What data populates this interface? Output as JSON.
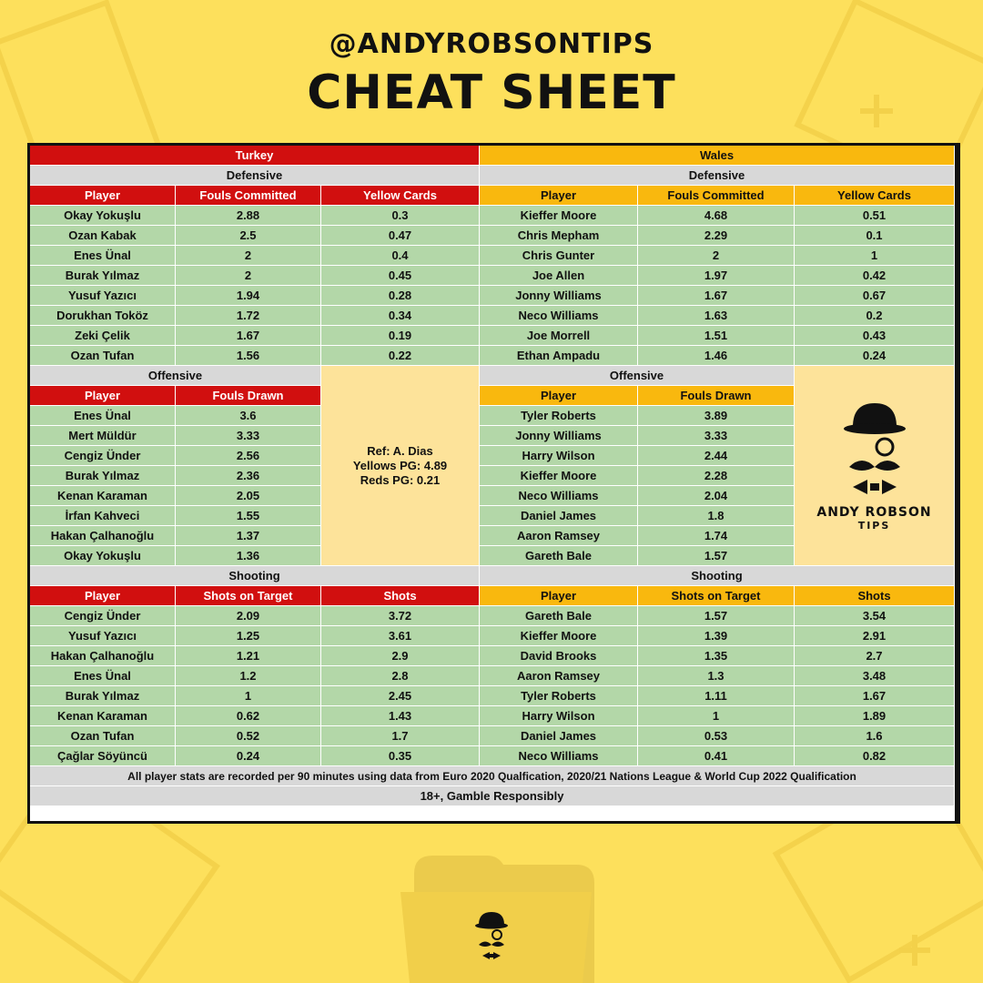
{
  "header": {
    "handle": "@ANDYROBSONTIPS",
    "title": "CHEAT SHEET"
  },
  "colors": {
    "background": "#fde05c",
    "turkey": "#d10f0f",
    "wales": "#f9b80e",
    "data_cell": "#b3d7a8",
    "section_header": "#d8d8d8",
    "panel": "#fde39a"
  },
  "teams": {
    "left": "Turkey",
    "right": "Wales"
  },
  "defensive": {
    "label": "Defensive",
    "headers": [
      "Player",
      "Fouls Committed",
      "Yellow Cards"
    ],
    "left_rows": [
      [
        "Okay Yokuşlu",
        "2.88",
        "0.3"
      ],
      [
        "Ozan Kabak",
        "2.5",
        "0.47"
      ],
      [
        "Enes Ünal",
        "2",
        "0.4"
      ],
      [
        "Burak Yılmaz",
        "2",
        "0.45"
      ],
      [
        "Yusuf Yazıcı",
        "1.94",
        "0.28"
      ],
      [
        "Dorukhan Toköz",
        "1.72",
        "0.34"
      ],
      [
        "Zeki Çelik",
        "1.67",
        "0.19"
      ],
      [
        "Ozan Tufan",
        "1.56",
        "0.22"
      ]
    ],
    "right_rows": [
      [
        "Kieffer Moore",
        "4.68",
        "0.51"
      ],
      [
        "Chris Mepham",
        "2.29",
        "0.1"
      ],
      [
        "Chris Gunter",
        "2",
        "1"
      ],
      [
        "Joe Allen",
        "1.97",
        "0.42"
      ],
      [
        "Jonny Williams",
        "1.67",
        "0.67"
      ],
      [
        "Neco Williams",
        "1.63",
        "0.2"
      ],
      [
        "Joe Morrell",
        "1.51",
        "0.43"
      ],
      [
        "Ethan Ampadu",
        "1.46",
        "0.24"
      ]
    ]
  },
  "offensive": {
    "label": "Offensive",
    "headers": [
      "Player",
      "Fouls Drawn"
    ],
    "left_rows": [
      [
        "Enes Ünal",
        "3.6"
      ],
      [
        "Mert Müldür",
        "3.33"
      ],
      [
        "Cengiz Ünder",
        "2.56"
      ],
      [
        "Burak Yılmaz",
        "2.36"
      ],
      [
        "Kenan Karaman",
        "2.05"
      ],
      [
        "İrfan Kahveci",
        "1.55"
      ],
      [
        "Hakan Çalhanoğlu",
        "1.37"
      ],
      [
        "Okay Yokuşlu",
        "1.36"
      ]
    ],
    "right_rows": [
      [
        "Tyler Roberts",
        "3.89"
      ],
      [
        "Jonny Williams",
        "3.33"
      ],
      [
        "Harry Wilson",
        "2.44"
      ],
      [
        "Kieffer Moore",
        "2.28"
      ],
      [
        "Neco Williams",
        "2.04"
      ],
      [
        "Daniel James",
        "1.8"
      ],
      [
        "Aaron Ramsey",
        "1.74"
      ],
      [
        "Gareth Bale",
        "1.57"
      ]
    ]
  },
  "referee": {
    "ref": "Ref: A. Dias",
    "yellows": "Yellows PG: 4.89",
    "reds": "Reds PG: 0.21"
  },
  "logo": {
    "name": "ANDY ROBSON",
    "sub": "TIPS"
  },
  "shooting": {
    "label": "Shooting",
    "headers": [
      "Player",
      "Shots on Target",
      "Shots"
    ],
    "left_rows": [
      [
        "Cengiz Ünder",
        "2.09",
        "3.72"
      ],
      [
        "Yusuf Yazıcı",
        "1.25",
        "3.61"
      ],
      [
        "Hakan Çalhanoğlu",
        "1.21",
        "2.9"
      ],
      [
        "Enes Ünal",
        "1.2",
        "2.8"
      ],
      [
        "Burak Yılmaz",
        "1",
        "2.45"
      ],
      [
        "Kenan Karaman",
        "0.62",
        "1.43"
      ],
      [
        "Ozan Tufan",
        "0.52",
        "1.7"
      ],
      [
        "Çağlar Söyüncü",
        "0.24",
        "0.35"
      ]
    ],
    "right_rows": [
      [
        "Gareth Bale",
        "1.57",
        "3.54"
      ],
      [
        "Kieffer Moore",
        "1.39",
        "2.91"
      ],
      [
        "David Brooks",
        "1.35",
        "2.7"
      ],
      [
        "Aaron Ramsey",
        "1.3",
        "3.48"
      ],
      [
        "Tyler Roberts",
        "1.11",
        "1.67"
      ],
      [
        "Harry Wilson",
        "1",
        "1.89"
      ],
      [
        "Daniel James",
        "0.53",
        "1.6"
      ],
      [
        "Neco Williams",
        "0.41",
        "0.82"
      ]
    ]
  },
  "footer": {
    "note": "All player stats are recorded per 90 minutes using data from Euro 2020 Qualfication, 2020/21 Nations League & World Cup 2022 Qualification",
    "gamble": "18+, Gamble Responsibly"
  },
  "icons": [
    "andy-robson-logo-icon",
    "bowler-hat-icon",
    "monocle-icon",
    "moustache-icon",
    "bow-tie-icon"
  ]
}
